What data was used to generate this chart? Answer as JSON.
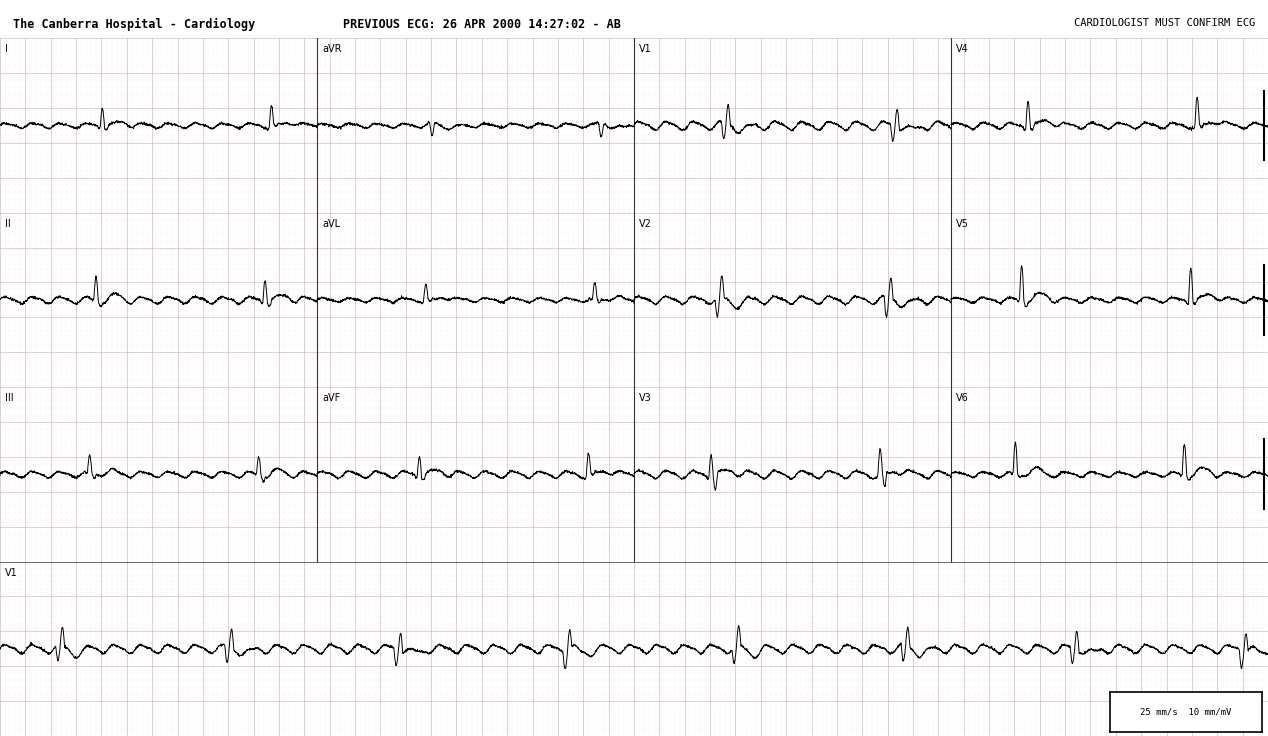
{
  "title_line1": "PREVIOUS ECG: 26 APR 2000 14:27:02 - AB",
  "title_line2": "The Canberra Hospital - Cardiology",
  "title_right": "CARDIOLOGIST MUST CONFIRM ECG",
  "background_color": "#ffffff",
  "grid_dot_color": "#ccaaaa",
  "ecg_color": "#000000",
  "fig_width": 12.68,
  "fig_height": 7.36,
  "header_text_color": "#000000",
  "info_box_text": "25 mm/s  10 mm/mV"
}
